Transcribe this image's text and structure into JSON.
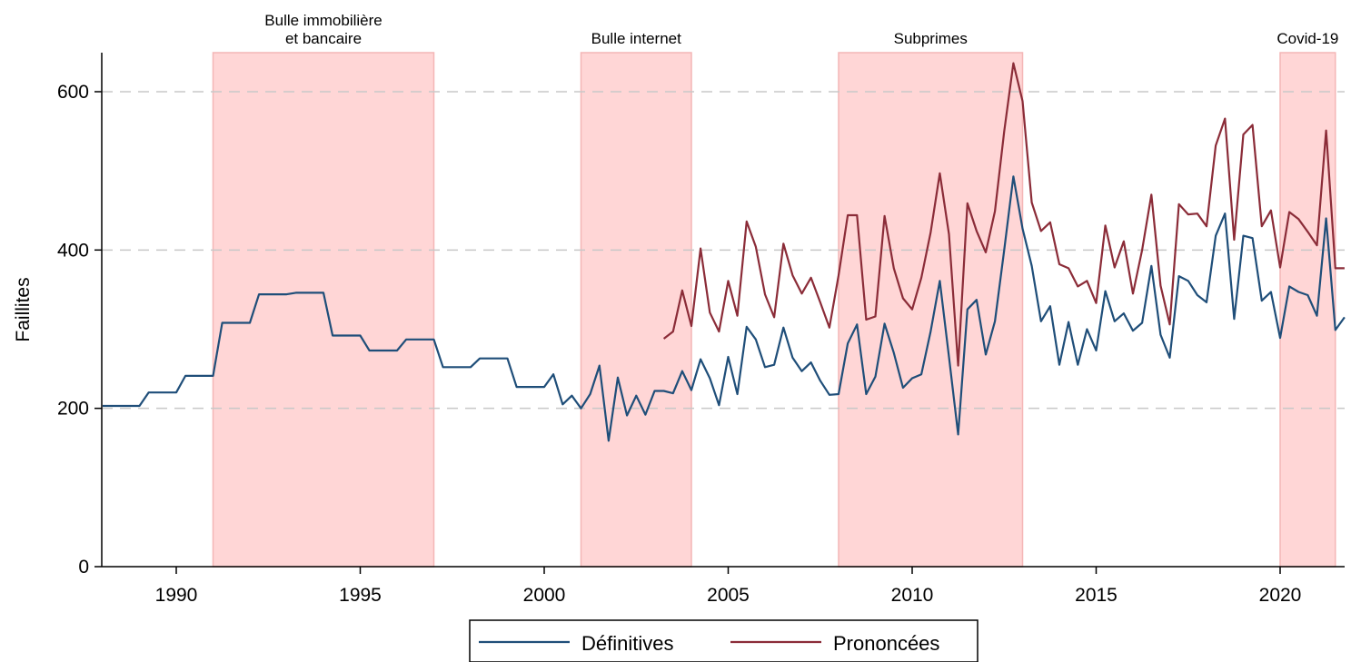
{
  "chart_data": {
    "type": "line",
    "ylabel": "Faillites",
    "xlabel": "",
    "xlim": [
      1988,
      2021.75
    ],
    "ylim": [
      0,
      650
    ],
    "x_ticks": [
      1990,
      1995,
      2000,
      2005,
      2010,
      2015,
      2020
    ],
    "y_ticks": [
      0,
      200,
      400,
      600
    ],
    "grid": "horizontal dashed",
    "legend_position": "bottom",
    "highlight_periods": [
      {
        "label_lines": [
          "Bulle immobilière",
          "et bancaire"
        ],
        "start": 1991,
        "end": 1997
      },
      {
        "label_lines": [
          "Bulle internet"
        ],
        "start": 2001,
        "end": 2004
      },
      {
        "label_lines": [
          "Subprimes"
        ],
        "start": 2008,
        "end": 2013
      },
      {
        "label_lines": [
          "Covid-19"
        ],
        "start": 2020,
        "end": 2021.5
      }
    ],
    "band_color": "#ffd6d6",
    "series": [
      {
        "name": "Définitives",
        "color": "#1f4e79",
        "points": [
          [
            1988,
            203
          ],
          [
            1989,
            203
          ],
          [
            1989.25,
            220
          ],
          [
            1990,
            220
          ],
          [
            1990.25,
            241
          ],
          [
            1991,
            241
          ],
          [
            1991.25,
            308
          ],
          [
            1992,
            308
          ],
          [
            1992.25,
            344
          ],
          [
            1993,
            344
          ],
          [
            1993.25,
            346
          ],
          [
            1994,
            346
          ],
          [
            1994.25,
            292
          ],
          [
            1995,
            292
          ],
          [
            1995.25,
            273
          ],
          [
            1996,
            273
          ],
          [
            1996.25,
            287
          ],
          [
            1997,
            287
          ],
          [
            1997.25,
            252
          ],
          [
            1998,
            252
          ],
          [
            1998.25,
            263
          ],
          [
            1999,
            263
          ],
          [
            1999.25,
            227
          ],
          [
            2000,
            227
          ],
          [
            2000.25,
            243
          ],
          [
            2000.5,
            205
          ],
          [
            2000.75,
            216
          ],
          [
            2001,
            200
          ],
          [
            2001.25,
            218
          ],
          [
            2001.5,
            254
          ],
          [
            2001.75,
            159
          ],
          [
            2002,
            239
          ],
          [
            2002.25,
            191
          ],
          [
            2002.5,
            216
          ],
          [
            2002.75,
            192
          ],
          [
            2003,
            222
          ],
          [
            2003.25,
            222
          ],
          [
            2003.5,
            219
          ],
          [
            2003.75,
            247
          ],
          [
            2004,
            223
          ],
          [
            2004.25,
            262
          ],
          [
            2004.5,
            238
          ],
          [
            2004.75,
            204
          ],
          [
            2005,
            265
          ],
          [
            2005.25,
            218
          ],
          [
            2005.5,
            303
          ],
          [
            2005.75,
            287
          ],
          [
            2006,
            252
          ],
          [
            2006.25,
            255
          ],
          [
            2006.5,
            302
          ],
          [
            2006.75,
            264
          ],
          [
            2007,
            247
          ],
          [
            2007.25,
            258
          ],
          [
            2007.5,
            235
          ],
          [
            2007.75,
            217
          ],
          [
            2008,
            218
          ],
          [
            2008.25,
            282
          ],
          [
            2008.5,
            306
          ],
          [
            2008.75,
            218
          ],
          [
            2009,
            240
          ],
          [
            2009.25,
            307
          ],
          [
            2009.5,
            270
          ],
          [
            2009.75,
            226
          ],
          [
            2010,
            238
          ],
          [
            2010.25,
            243
          ],
          [
            2010.5,
            297
          ],
          [
            2010.75,
            361
          ],
          [
            2011,
            265
          ],
          [
            2011.25,
            167
          ],
          [
            2011.5,
            325
          ],
          [
            2011.75,
            337
          ],
          [
            2012,
            268
          ],
          [
            2012.25,
            310
          ],
          [
            2012.5,
            400
          ],
          [
            2012.75,
            493
          ],
          [
            2013,
            427
          ],
          [
            2013.25,
            380
          ],
          [
            2013.5,
            310
          ],
          [
            2013.75,
            329
          ],
          [
            2014,
            255
          ],
          [
            2014.25,
            309
          ],
          [
            2014.5,
            255
          ],
          [
            2014.75,
            300
          ],
          [
            2015,
            273
          ],
          [
            2015.25,
            348
          ],
          [
            2015.5,
            310
          ],
          [
            2015.75,
            320
          ],
          [
            2016,
            298
          ],
          [
            2016.25,
            308
          ],
          [
            2016.5,
            380
          ],
          [
            2016.75,
            293
          ],
          [
            2017,
            264
          ],
          [
            2017.25,
            367
          ],
          [
            2017.5,
            361
          ],
          [
            2017.75,
            343
          ],
          [
            2018,
            334
          ],
          [
            2018.25,
            418
          ],
          [
            2018.5,
            446
          ],
          [
            2018.75,
            313
          ],
          [
            2019,
            418
          ],
          [
            2019.25,
            415
          ],
          [
            2019.5,
            336
          ],
          [
            2019.75,
            347
          ],
          [
            2020,
            289
          ],
          [
            2020.25,
            354
          ],
          [
            2020.5,
            347
          ],
          [
            2020.75,
            343
          ],
          [
            2021,
            317
          ],
          [
            2021.25,
            440
          ],
          [
            2021.5,
            299
          ],
          [
            2021.75,
            315
          ]
        ]
      },
      {
        "name": "Prononcées",
        "color": "#8b2c38",
        "points": [
          [
            2003.25,
            288
          ],
          [
            2003.5,
            297
          ],
          [
            2003.75,
            349
          ],
          [
            2004,
            304
          ],
          [
            2004.25,
            402
          ],
          [
            2004.5,
            321
          ],
          [
            2004.75,
            297
          ],
          [
            2005,
            361
          ],
          [
            2005.25,
            317
          ],
          [
            2005.5,
            436
          ],
          [
            2005.75,
            404
          ],
          [
            2006,
            344
          ],
          [
            2006.25,
            315
          ],
          [
            2006.5,
            408
          ],
          [
            2006.75,
            368
          ],
          [
            2007,
            345
          ],
          [
            2007.25,
            365
          ],
          [
            2007.5,
            334
          ],
          [
            2007.75,
            302
          ],
          [
            2008,
            368
          ],
          [
            2008.25,
            444
          ],
          [
            2008.5,
            444
          ],
          [
            2008.75,
            312
          ],
          [
            2009,
            316
          ],
          [
            2009.25,
            443
          ],
          [
            2009.5,
            377
          ],
          [
            2009.75,
            339
          ],
          [
            2010,
            325
          ],
          [
            2010.25,
            365
          ],
          [
            2010.5,
            422
          ],
          [
            2010.75,
            497
          ],
          [
            2011,
            420
          ],
          [
            2011.25,
            254
          ],
          [
            2011.5,
            459
          ],
          [
            2011.75,
            424
          ],
          [
            2012,
            397
          ],
          [
            2012.25,
            449
          ],
          [
            2012.5,
            550
          ],
          [
            2012.75,
            636
          ],
          [
            2013,
            588
          ],
          [
            2013.25,
            460
          ],
          [
            2013.5,
            424
          ],
          [
            2013.75,
            435
          ],
          [
            2014,
            382
          ],
          [
            2014.25,
            377
          ],
          [
            2014.5,
            354
          ],
          [
            2014.75,
            361
          ],
          [
            2015,
            333
          ],
          [
            2015.25,
            431
          ],
          [
            2015.5,
            378
          ],
          [
            2015.75,
            411
          ],
          [
            2016,
            345
          ],
          [
            2016.25,
            400
          ],
          [
            2016.5,
            470
          ],
          [
            2016.75,
            355
          ],
          [
            2017,
            306
          ],
          [
            2017.25,
            458
          ],
          [
            2017.5,
            445
          ],
          [
            2017.75,
            446
          ],
          [
            2018,
            430
          ],
          [
            2018.25,
            532
          ],
          [
            2018.5,
            566
          ],
          [
            2018.75,
            413
          ],
          [
            2019,
            546
          ],
          [
            2019.25,
            558
          ],
          [
            2019.5,
            430
          ],
          [
            2019.75,
            450
          ],
          [
            2020,
            378
          ],
          [
            2020.25,
            448
          ],
          [
            2020.5,
            439
          ],
          [
            2020.75,
            423
          ],
          [
            2021,
            406
          ],
          [
            2021.25,
            551
          ],
          [
            2021.5,
            377
          ],
          [
            2021.75,
            377
          ]
        ]
      }
    ]
  }
}
